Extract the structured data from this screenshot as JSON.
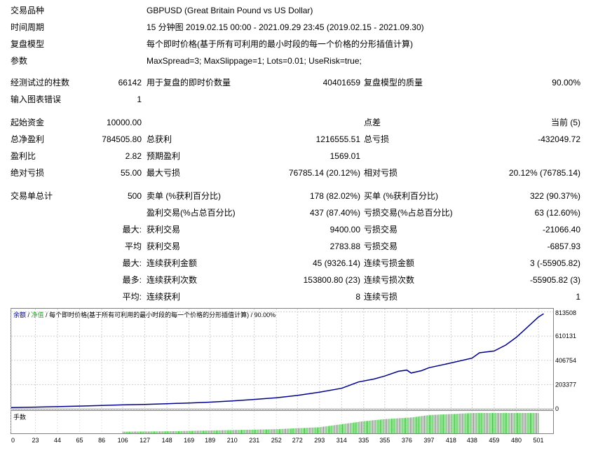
{
  "header": {
    "symbol_label": "交易品种",
    "symbol_value": "GBPUSD (Great Britain Pound vs US Dollar)",
    "period_label": "时间周期",
    "period_value": "15 分钟图 2019.02.15 00:00 - 2021.09.29 23:45 (2019.02.15 - 2021.09.30)",
    "model_label": "复盘模型",
    "model_value": "每个即时价格(基于所有可利用的最小时段的每一个价格的分形插值计算)",
    "params_label": "参数",
    "params_value": "MaxSpread=3; MaxSlippage=1; Lots=0.01; UseRisk=true;"
  },
  "bars": {
    "bars_label": "经测试过的柱数",
    "bars_value": "66142",
    "ticks_label": "用于复盘的即时价数量",
    "ticks_value": "40401659",
    "quality_label": "复盘模型的质量",
    "quality_value": "90.00%",
    "errors_label": "输入图表错误",
    "errors_value": "1"
  },
  "stats": {
    "deposit_label": "起始资金",
    "deposit_value": "10000.00",
    "spread_label": "点差",
    "spread_value": "当前 (5)",
    "net_label": "总净盈利",
    "net_value": "784505.80",
    "gross_profit_label": "总获利",
    "gross_profit_value": "1216555.51",
    "gross_loss_label": "总亏损",
    "gross_loss_value": "-432049.72",
    "pf_label": "盈利比",
    "pf_value": "2.82",
    "payoff_label": "预期盈利",
    "payoff_value": "1569.01",
    "abs_dd_label": "绝对亏损",
    "abs_dd_value": "55.00",
    "max_dd_label": "最大亏损",
    "max_dd_value": "76785.14 (20.12%)",
    "rel_dd_label": "相对亏损",
    "rel_dd_value": "20.12% (76785.14)"
  },
  "trades": {
    "total_label": "交易单总计",
    "total_value": "500",
    "short_label": "卖单 (%获利百分比)",
    "short_value": "178 (82.02%)",
    "long_label": "买单 (%获利百分比)",
    "long_value": "322 (90.37%)",
    "prof_label": "盈利交易(%占总百分比)",
    "prof_value": "437 (87.40%)",
    "loss_label": "亏损交易(%占总百分比)",
    "loss_value": "63 (12.60%)",
    "largest_label": "最大:",
    "largest_prof_label": "获利交易",
    "largest_prof_value": "9400.00",
    "largest_loss_label": "亏损交易",
    "largest_loss_value": "-21066.40",
    "avg_label": "平均",
    "avg_prof_label": "获利交易",
    "avg_prof_value": "2783.88",
    "avg_loss_label": "亏损交易",
    "avg_loss_value": "-6857.93",
    "max_cons_label": "最大:",
    "max_cons_wins_label": "连续获利金额",
    "max_cons_wins_value": "45 (9326.14)",
    "max_cons_losses_label": "连续亏损金额",
    "max_cons_losses_value": "3 (-55905.82)",
    "max_amt_label": "最多:",
    "max_amt_wins_label": "连续获利次数",
    "max_amt_wins_value": "153800.80 (23)",
    "max_amt_losses_label": "连续亏损次数",
    "max_amt_losses_value": "-55905.82 (3)",
    "avg_cons_label": "平均:",
    "avg_cons_wins_label": "连续获利",
    "avg_cons_wins_value": "8",
    "avg_cons_losses_label": "连续亏损",
    "avg_cons_losses_value": "1"
  },
  "chart_data": {
    "type": "line",
    "legend": {
      "balance": "余额",
      "equity": "净值",
      "model": "每个即时价格(基于所有可利用的最小时段的每一个价格的分形插值计算)",
      "quality": "90.00%"
    },
    "y_ticks": [
      813508,
      610131,
      406754,
      203377,
      0
    ],
    "ylim": [
      0,
      840000
    ],
    "xlim": [
      0,
      515
    ],
    "x_ticks": [
      0,
      23,
      44,
      65,
      86,
      106,
      127,
      148,
      169,
      189,
      210,
      231,
      252,
      272,
      293,
      314,
      335,
      355,
      376,
      397,
      418,
      438,
      459,
      480,
      501
    ],
    "balance_color": "#00008b",
    "volume_color": "#22aa22",
    "volume_label": "手数",
    "volume_start": 106,
    "volume_end": 501,
    "balance": [
      [
        0,
        10000
      ],
      [
        23,
        14000
      ],
      [
        44,
        18000
      ],
      [
        65,
        23000
      ],
      [
        86,
        28000
      ],
      [
        106,
        33000
      ],
      [
        127,
        37000
      ],
      [
        148,
        43000
      ],
      [
        169,
        49000
      ],
      [
        189,
        56000
      ],
      [
        210,
        66000
      ],
      [
        231,
        79000
      ],
      [
        252,
        93000
      ],
      [
        272,
        112000
      ],
      [
        293,
        140000
      ],
      [
        314,
        172000
      ],
      [
        330,
        225000
      ],
      [
        345,
        250000
      ],
      [
        355,
        275000
      ],
      [
        368,
        315000
      ],
      [
        376,
        325000
      ],
      [
        380,
        300000
      ],
      [
        390,
        320000
      ],
      [
        397,
        345000
      ],
      [
        418,
        385000
      ],
      [
        438,
        425000
      ],
      [
        445,
        470000
      ],
      [
        459,
        485000
      ],
      [
        470,
        535000
      ],
      [
        480,
        600000
      ],
      [
        490,
        680000
      ],
      [
        501,
        770000
      ],
      [
        506,
        798000
      ]
    ],
    "volume": [
      [
        106,
        0.08
      ],
      [
        150,
        0.1
      ],
      [
        200,
        0.15
      ],
      [
        250,
        0.2
      ],
      [
        293,
        0.3
      ],
      [
        314,
        0.45
      ],
      [
        335,
        0.6
      ],
      [
        355,
        0.7
      ],
      [
        380,
        0.78
      ],
      [
        397,
        0.9
      ],
      [
        418,
        0.95
      ],
      [
        438,
        1.0
      ],
      [
        501,
        1.0
      ]
    ]
  }
}
